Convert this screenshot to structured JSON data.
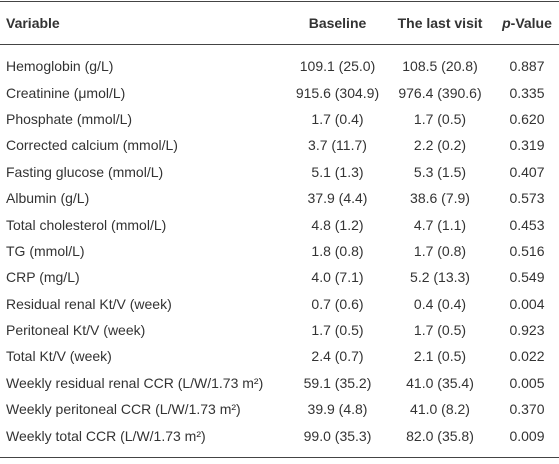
{
  "table": {
    "header": [
      "Variable",
      "Baseline",
      "The last visit",
      "p-Value"
    ],
    "rows": [
      [
        "Hemoglobin (g/L)",
        "109.1 (25.0)",
        "108.5 (20.8)",
        "0.887"
      ],
      [
        "Creatinine (μmol/L)",
        "915.6 (304.9)",
        "976.4 (390.6)",
        "0.335"
      ],
      [
        "Phosphate (mmol/L)",
        "1.7 (0.4)",
        "1.7 (0.5)",
        "0.620"
      ],
      [
        "Corrected calcium (mmol/L)",
        "3.7 (11.7)",
        "2.2 (0.2)",
        "0.319"
      ],
      [
        "Fasting glucose (mmol/L)",
        "5.1 (1.3)",
        "5.3 (1.5)",
        "0.407"
      ],
      [
        "Albumin (g/L)",
        "37.9 (4.4)",
        "38.6 (7.9)",
        "0.573"
      ],
      [
        "Total cholesterol (mmol/L)",
        "4.8 (1.2)",
        "4.7 (1.1)",
        "0.453"
      ],
      [
        "TG (mmol/L)",
        "1.8 (0.8)",
        "1.7 (0.8)",
        "0.516"
      ],
      [
        "CRP (mg/L)",
        "4.0 (7.1)",
        "5.2 (13.3)",
        "0.549"
      ],
      [
        "Residual renal Kt/V (week)",
        "0.7 (0.6)",
        "0.4 (0.4)",
        "0.004"
      ],
      [
        "Peritoneal Kt/V (week)",
        "1.7 (0.5)",
        "1.7 (0.5)",
        "0.923"
      ],
      [
        "Total Kt/V (week)",
        "2.4 (0.7)",
        "2.1 (0.5)",
        "0.022"
      ],
      [
        "Weekly residual renal CCR (L/W/1.73 m²)",
        "59.1 (35.2)",
        "41.0 (35.4)",
        "0.005"
      ],
      [
        "Weekly peritoneal CCR (L/W/1.73 m²)",
        "39.9 (4.8)",
        "41.0 (8.2)",
        "0.370"
      ],
      [
        "Weekly total CCR (L/W/1.73 m²)",
        "99.0 (35.3)",
        "82.0 (35.8)",
        "0.009"
      ]
    ]
  }
}
